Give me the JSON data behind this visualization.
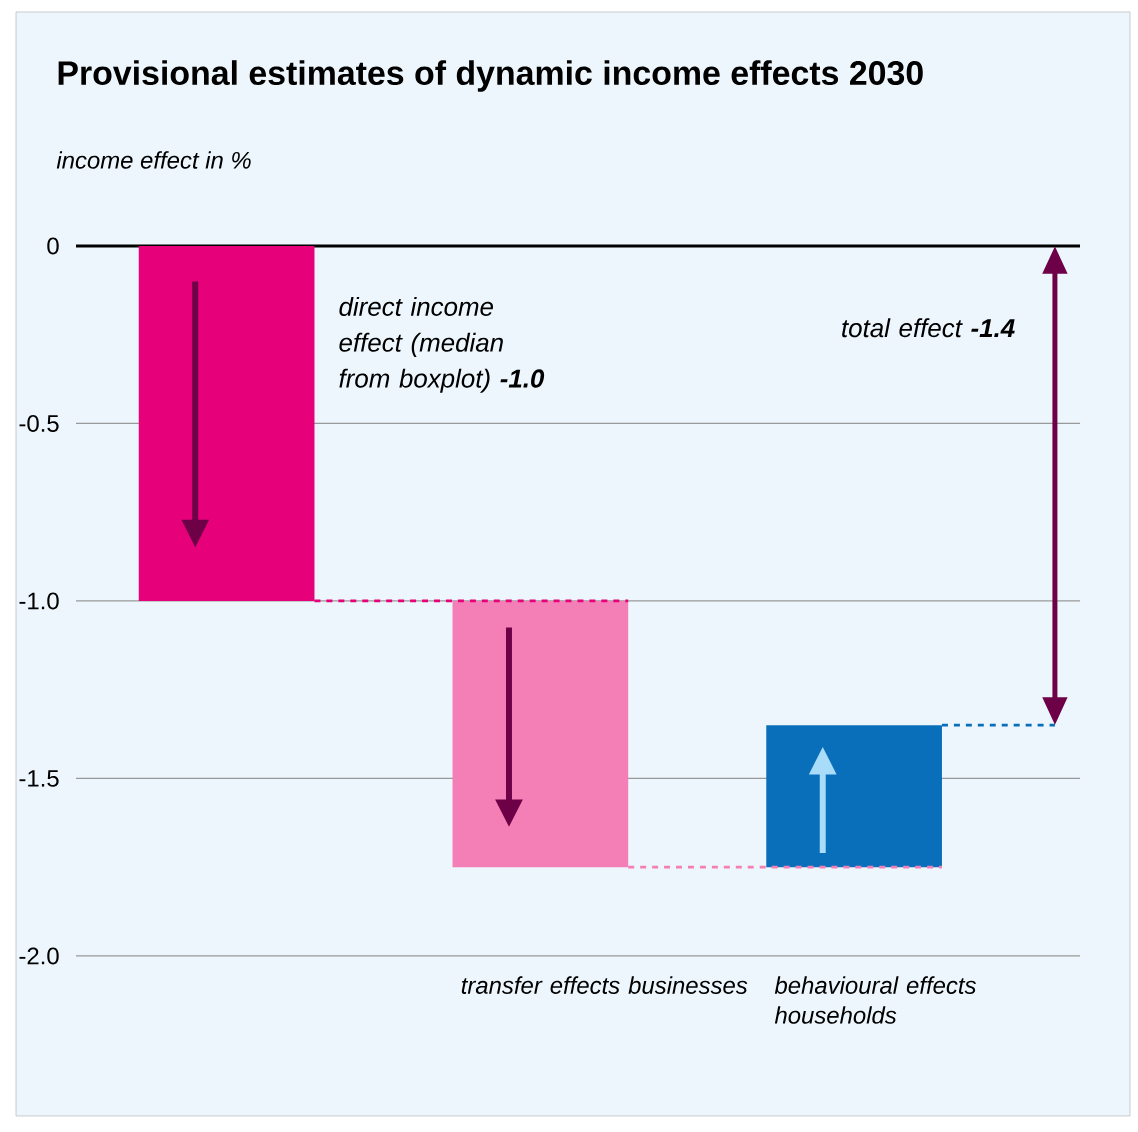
{
  "chart_data": {
    "type": "bar",
    "title": "Provisional estimates of dynamic income effects 2030",
    "ylabel": "income effect in %",
    "categories": [
      null,
      "transfer effects businesses",
      "behavioural effects households"
    ],
    "values": [
      -1.0,
      -0.75,
      0.4
    ],
    "base": [
      0,
      -1.0,
      -1.75
    ],
    "colors": [
      "#e6007a",
      "#f47fb6",
      "#0a6fbb"
    ],
    "ylim": [
      -2.0,
      0
    ],
    "yticks": [
      {
        "value": 0,
        "label": "0"
      },
      {
        "value": -0.5,
        "label": "-0.5"
      },
      {
        "value": -1.0,
        "label": "-1.0"
      },
      {
        "value": -1.5,
        "label": "-1.5"
      },
      {
        "value": -2.0,
        "label": "-2.0"
      }
    ],
    "grid": "y",
    "ref_lines": [
      {
        "axis": "y",
        "value": -1.0,
        "color": "#e6007a",
        "line_style": "dashed"
      },
      {
        "axis": "y",
        "value": -1.75,
        "color": "#f47fb6",
        "line_style": "dashed"
      },
      {
        "axis": "y",
        "value": -1.35,
        "color": "#0a6fbb",
        "line_style": "dashed"
      }
    ],
    "annotations": [
      "direct income effect (median from boxplot) **-1.0**",
      "total effect **-1.4**"
    ]
  }
}
